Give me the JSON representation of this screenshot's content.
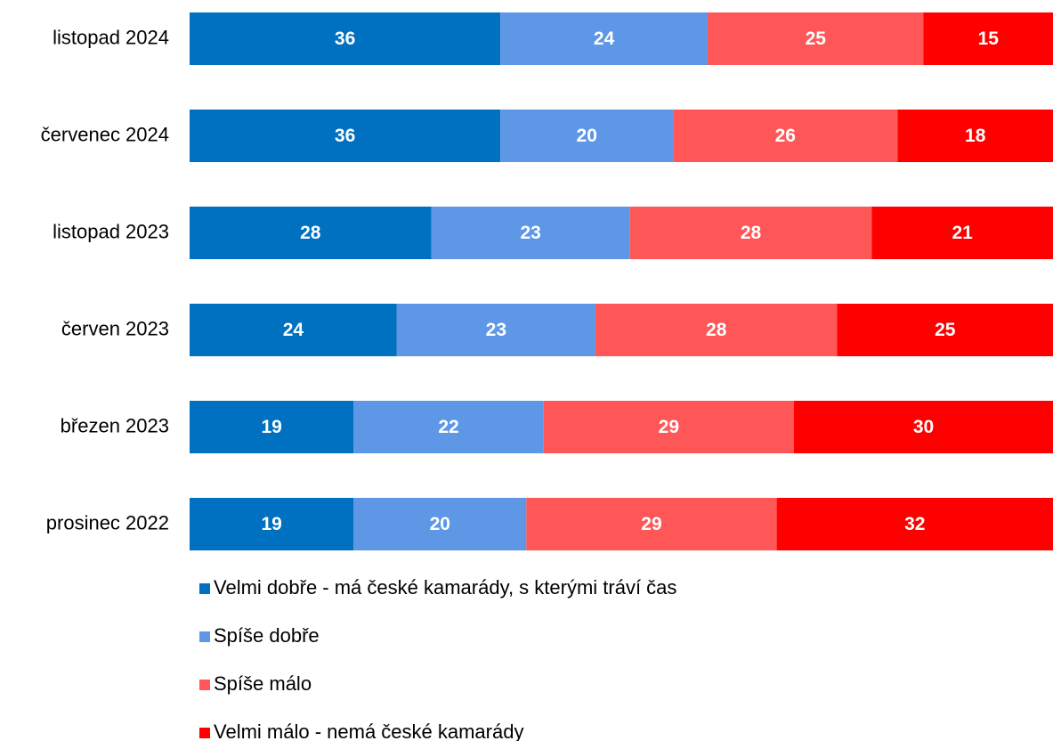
{
  "chart_data": {
    "type": "stacked-bar-horizontal",
    "categories": [
      "listopad 2024",
      "červenec 2024",
      "listopad 2023",
      "červen 2023",
      "březen 2023",
      "prosinec 2022"
    ],
    "series": [
      {
        "name": "Velmi dobře - má české kamarády, s kterými tráví čas",
        "color": "#0070c0",
        "values": [
          36,
          36,
          28,
          24,
          19,
          19
        ]
      },
      {
        "name": "Spíše dobře",
        "color": "#5e97e6",
        "values": [
          24,
          20,
          23,
          23,
          22,
          20
        ]
      },
      {
        "name": "Spíše málo",
        "color": "#ff5757",
        "values": [
          25,
          26,
          28,
          28,
          29,
          29
        ]
      },
      {
        "name": "Velmi málo - nemá české kamarády",
        "color": "#ff0000",
        "values": [
          15,
          18,
          21,
          25,
          30,
          32
        ]
      }
    ],
    "xlim": [
      0,
      100
    ],
    "legend": "bottom"
  }
}
